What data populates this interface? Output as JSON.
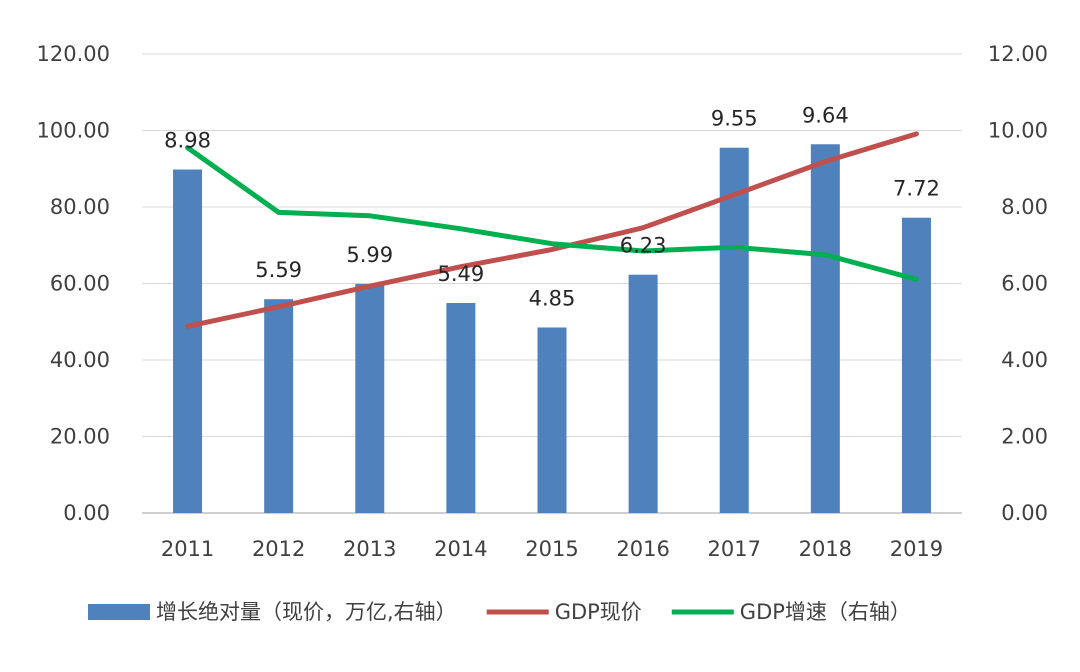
{
  "chart_data": {
    "type": "bar",
    "categories": [
      "2011",
      "2012",
      "2013",
      "2014",
      "2015",
      "2016",
      "2017",
      "2018",
      "2019"
    ],
    "series": [
      {
        "name": "增长绝对量（现价，万亿,右轴）",
        "kind": "bar",
        "axis": "right",
        "color": "#4F81BD",
        "values": [
          8.98,
          5.59,
          5.99,
          5.49,
          4.85,
          6.23,
          9.55,
          9.64,
          7.72
        ],
        "labels": [
          "8.98",
          "5.59",
          "5.99",
          "5.49",
          "4.85",
          "6.23",
          "9.55",
          "9.64",
          "7.72"
        ]
      },
      {
        "name": "GDP现价",
        "kind": "line",
        "axis": "left",
        "color": "#C0504D",
        "values": [
          48.8,
          53.9,
          59.3,
          64.4,
          68.9,
          74.6,
          83.2,
          91.9,
          99.1
        ]
      },
      {
        "name": "GDP增速（右轴）",
        "kind": "line",
        "axis": "right",
        "color": "#00B050",
        "values": [
          9.55,
          7.86,
          7.77,
          7.43,
          7.04,
          6.85,
          6.95,
          6.75,
          6.11
        ]
      }
    ],
    "y_left": {
      "lim": [
        0,
        120
      ],
      "ticks": [
        "0.00",
        "20.00",
        "40.00",
        "60.00",
        "80.00",
        "100.00",
        "120.00"
      ]
    },
    "y_right": {
      "lim": [
        0,
        12
      ],
      "ticks": [
        "0.00",
        "2.00",
        "4.00",
        "6.00",
        "8.00",
        "10.00",
        "12.00"
      ]
    },
    "grid": true,
    "legend_position": "bottom"
  }
}
